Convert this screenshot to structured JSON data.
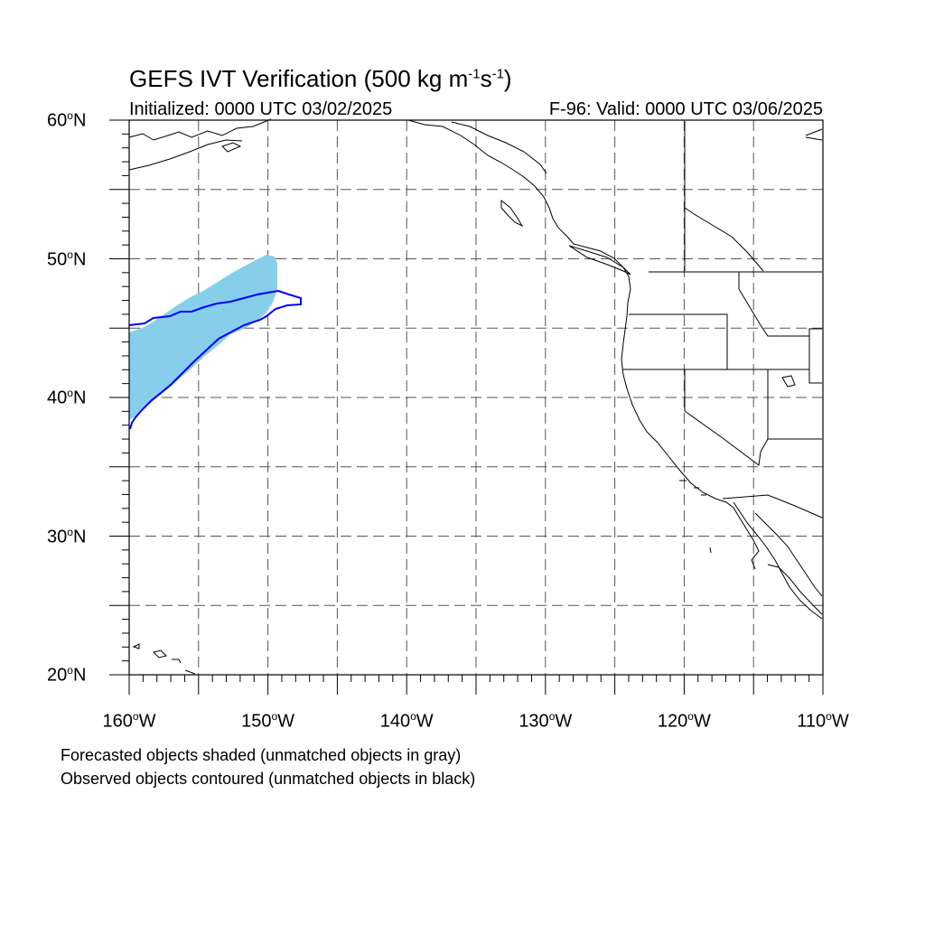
{
  "title": {
    "main": "GEFS IVT Verification (500 kg m",
    "exp1": "-1",
    "mid": "s",
    "exp2": "-1",
    "end": ")"
  },
  "initialized": "Initialized: 0000 UTC 03/02/2025",
  "valid": "F-96: Valid: 0000 UTC 03/06/2025",
  "map": {
    "projection": "cylindrical-equidistant",
    "lon_range": [
      -160,
      -110
    ],
    "lat_range": [
      20,
      60
    ],
    "grid": "dashed every 5 degrees",
    "forecast_fill_color": "#87ceeb",
    "observed_contour_color": "#0000ff",
    "coastline_color": "#000000"
  },
  "lat_labels": [
    {
      "deg": "60",
      "hemi": "N",
      "value": 60
    },
    {
      "deg": "50",
      "hemi": "N",
      "value": 50
    },
    {
      "deg": "40",
      "hemi": "N",
      "value": 40
    },
    {
      "deg": "30",
      "hemi": "N",
      "value": 30
    },
    {
      "deg": "20",
      "hemi": "N",
      "value": 20
    }
  ],
  "lon_labels": [
    {
      "deg": "160",
      "hemi": "W",
      "value": -160
    },
    {
      "deg": "150",
      "hemi": "W",
      "value": -150
    },
    {
      "deg": "140",
      "hemi": "W",
      "value": -140
    },
    {
      "deg": "130",
      "hemi": "W",
      "value": -130
    },
    {
      "deg": "120",
      "hemi": "W",
      "value": -120
    },
    {
      "deg": "110",
      "hemi": "W",
      "value": -110
    }
  ],
  "notes": {
    "line1": "Forecasted objects shaded (unmatched objects in gray)",
    "line2": "Observed objects contoured (unmatched objects in black)"
  }
}
